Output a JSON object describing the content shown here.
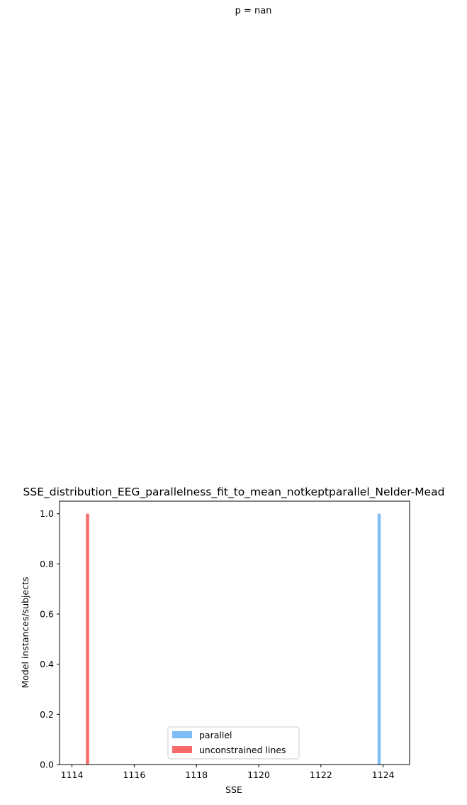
{
  "figure": {
    "suptitle": "p = nan"
  },
  "chart_data": {
    "type": "bar",
    "title": "SSE_distribution_EEG_parallelness_fit_to_mean_notkeptparallel_Nelder-Mead",
    "xlabel": "SSE",
    "ylabel": "Model instances/subjects",
    "xlim": [
      1113.6,
      1124.85
    ],
    "ylim": [
      0,
      1.05
    ],
    "xticks": [
      1114,
      1116,
      1118,
      1120,
      1122,
      1124
    ],
    "yticks": [
      0.0,
      0.2,
      0.4,
      0.6,
      0.8,
      1.0
    ],
    "xtick_labels": [
      "1114",
      "1116",
      "1118",
      "1120",
      "1122",
      "1124"
    ],
    "ytick_labels": [
      "0.0",
      "0.2",
      "0.4",
      "0.6",
      "0.8",
      "1.0"
    ],
    "legend_position": "lower center",
    "grid": false,
    "series": [
      {
        "name": "parallel",
        "color": "#7fbcf4",
        "bars": [
          {
            "x0": 1123.82,
            "x1": 1123.92,
            "height": 1.0
          }
        ]
      },
      {
        "name": "unconstrained lines",
        "color": "#f96a6a",
        "bars": [
          {
            "x0": 1114.45,
            "x1": 1114.55,
            "height": 1.0
          }
        ]
      }
    ]
  }
}
